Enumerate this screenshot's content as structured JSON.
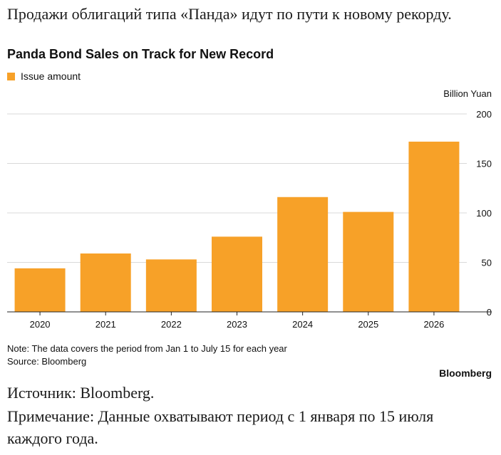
{
  "header": {
    "heading_ru": "Продажи облигаций типа «Панда» идут по пути к новому рекорду."
  },
  "chart_data": {
    "type": "bar",
    "title": "Panda Bond Sales on Track for New Record",
    "unit_label": "Billion Yuan",
    "categories": [
      "2020",
      "2021",
      "2022",
      "2023",
      "2024",
      "2025",
      "2026"
    ],
    "series": [
      {
        "name": "Issue amount",
        "values": [
          44,
          59,
          53,
          76,
          116,
          101,
          172
        ]
      }
    ],
    "ylim": [
      0,
      200
    ],
    "yticks": [
      0,
      50,
      100,
      150,
      200
    ],
    "grid": true,
    "legend_position": "top-left",
    "bar_color": "#F7A128"
  },
  "footer": {
    "note": "Note: The data covers the period from Jan 1 to July 15 for each year",
    "source": "Source: Bloomberg",
    "brand": "Bloomberg",
    "source_ru": "Источник: Bloomberg.",
    "note_ru": "Примечание: Данные охватывают период с 1 января по 15 июля каждого года."
  }
}
